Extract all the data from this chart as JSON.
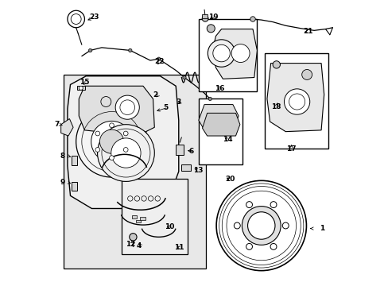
{
  "background_color": "#ffffff",
  "line_color": "#000000",
  "light_gray": "#d8d8d8",
  "fig_width": 4.89,
  "fig_height": 3.6,
  "dpi": 100
}
